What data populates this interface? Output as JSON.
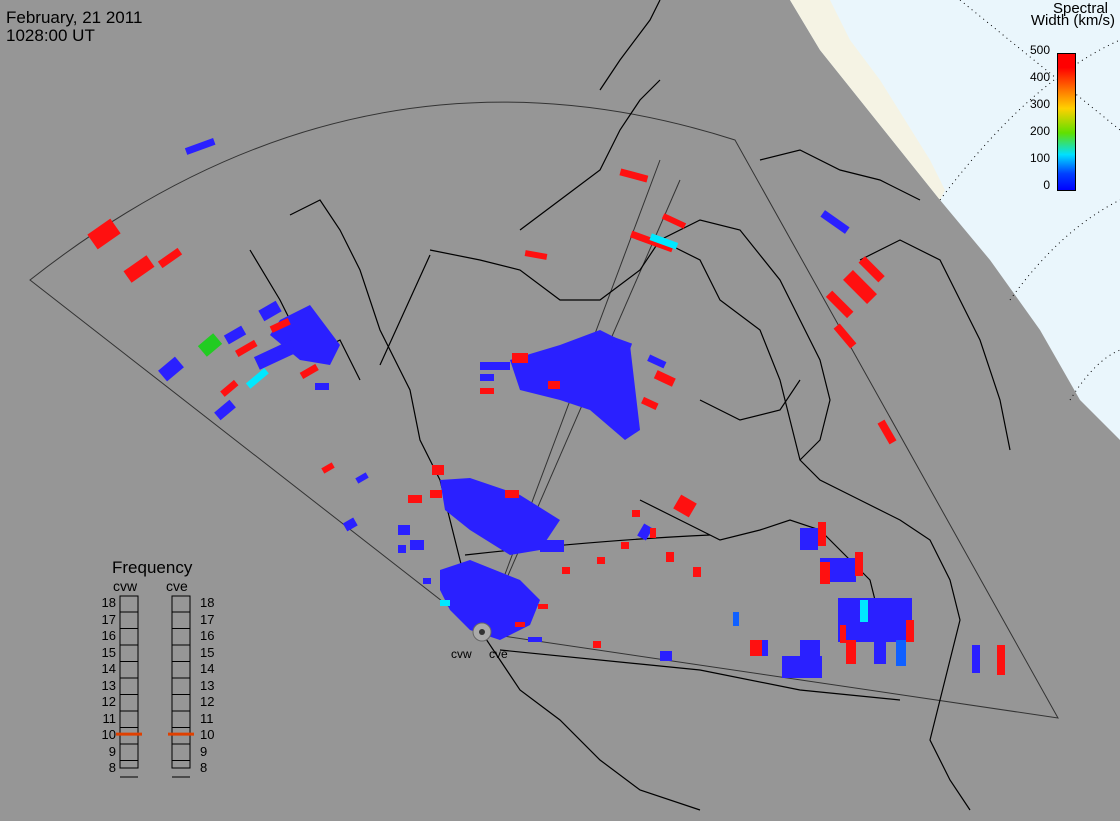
{
  "header": {
    "date": "February, 21 2011",
    "time": "1028:00 UT"
  },
  "colorbar": {
    "title_line1": "Spectral",
    "title_line2": "Width (km/s)",
    "ticks": [
      "500",
      "400",
      "300",
      "200",
      "100",
      "0"
    ]
  },
  "frequency_panel": {
    "title": "Frequency",
    "radars": [
      {
        "name": "cvw",
        "current_mhz": 10.6
      },
      {
        "name": "cve",
        "current_mhz": 10.6
      }
    ],
    "scale_labels": [
      "18",
      "17",
      "16",
      "15",
      "14",
      "13",
      "12",
      "11",
      "10",
      "9",
      "8"
    ],
    "indicator_color": "#e04000"
  },
  "sites": [
    "cvw",
    "cve"
  ],
  "colors": {
    "background": "#ffffff",
    "land_gray": "#969696",
    "ocean_ice": "#eaf6fc",
    "coast_sand": "#f5f3e4",
    "coastline": "#000000",
    "low_width": "#2a20ff",
    "mid_cyan": "#00e8ff",
    "green": "#22cc22",
    "high_width": "#ff1010"
  }
}
